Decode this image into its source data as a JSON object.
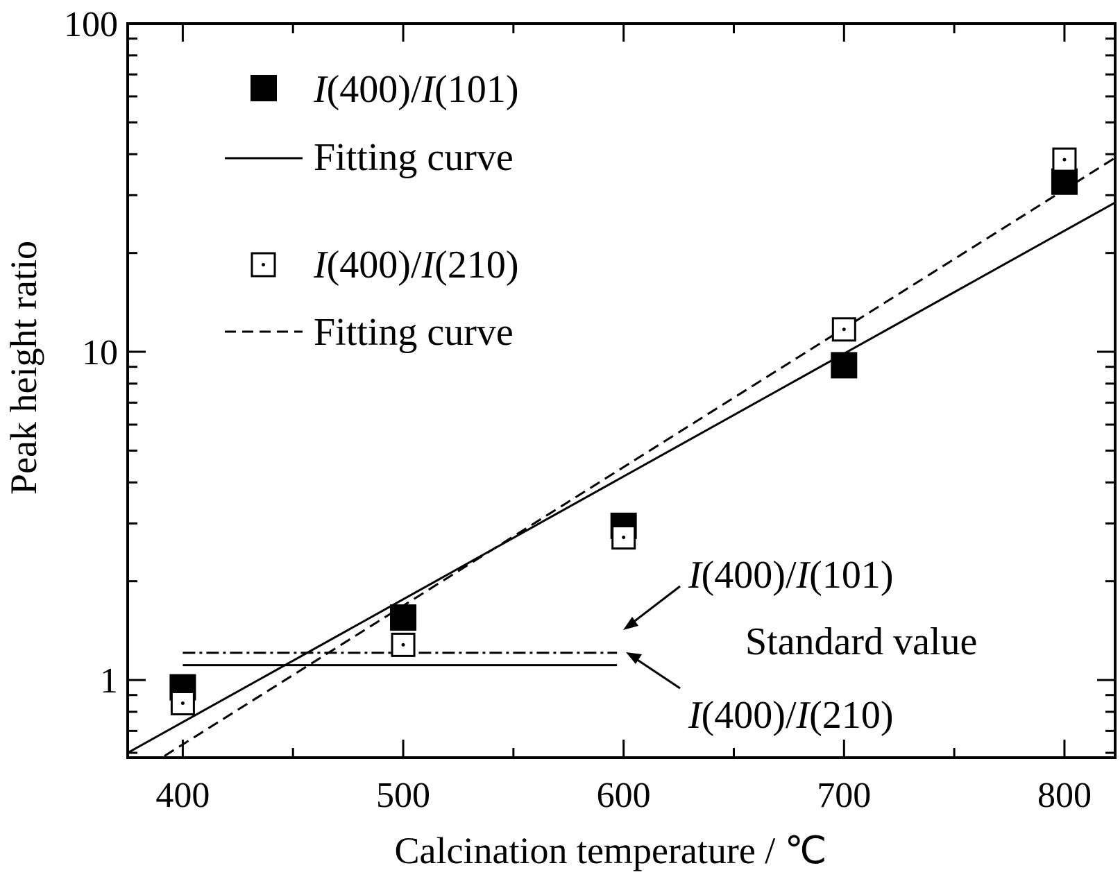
{
  "chart_data": {
    "type": "scatter",
    "title": "",
    "xlabel": "Calcination temperature / ℃",
    "ylabel": "Peak height ratio",
    "xlim": [
      375,
      823
    ],
    "ylim": [
      0.58,
      100
    ],
    "yscale": "log",
    "grid": false,
    "xticks": [
      400,
      500,
      600,
      700,
      800
    ],
    "xtick_labels": [
      "400",
      "500",
      "600",
      "700",
      "800"
    ],
    "x_minor_ticks": [
      450,
      550,
      650,
      750
    ],
    "yticks": [
      1,
      10,
      100
    ],
    "ytick_labels": [
      "1",
      "10",
      "100"
    ],
    "y_minor_ticks": [
      0.6,
      0.7,
      0.8,
      0.9,
      2,
      3,
      4,
      5,
      6,
      7,
      8,
      9,
      20,
      30,
      40,
      50,
      60,
      70,
      80,
      90
    ],
    "legend_position": "top-left",
    "series": [
      {
        "name": "I(400)/I(101)",
        "name_parts": [
          "I",
          "(400)/",
          "I",
          "(101)"
        ],
        "marker": "filled-square",
        "x": [
          400,
          500,
          600,
          700,
          800
        ],
        "y": [
          0.95,
          1.55,
          2.95,
          9.1,
          33.0
        ]
      },
      {
        "name": "I(400)/I(210)",
        "name_parts": [
          "I",
          "(400)/",
          "I",
          "(210)"
        ],
        "marker": "open-square-dot",
        "x": [
          400,
          500,
          600,
          700,
          800
        ],
        "y": [
          0.85,
          1.28,
          2.72,
          11.7,
          38.5
        ]
      }
    ],
    "fits": [
      {
        "name": "Fitting curve",
        "style": "solid",
        "for": "I(400)/I(101)",
        "x": [
          375,
          823
        ],
        "y": [
          0.6,
          28.5
        ]
      },
      {
        "name": "Fitting curve",
        "style": "dashed",
        "for": "I(400)/I(210)",
        "x": [
          385,
          823
        ],
        "y": [
          0.55,
          39.0
        ]
      }
    ],
    "standard_values": [
      {
        "label_parts": [
          "I",
          "(400)/",
          "I",
          "(101)"
        ],
        "style": "dash-dot",
        "y": 1.21,
        "x_range": [
          400,
          597
        ]
      },
      {
        "label_parts": [
          "I",
          "(400)/",
          "I",
          "(210)"
        ],
        "style": "solid",
        "y": 1.11,
        "x_range": [
          400,
          597
        ]
      }
    ],
    "annotation": "Standard value"
  }
}
